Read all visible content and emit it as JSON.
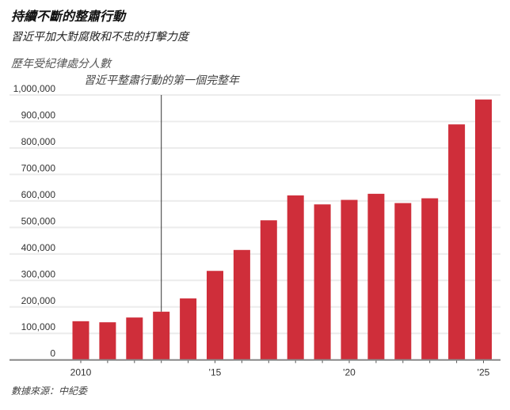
{
  "title": "持續不斷的整肅行動",
  "subtitle": "習近平加大對腐敗和不忠的打擊力度",
  "source": "數據來源：中紀委",
  "chart_data": {
    "type": "bar",
    "title": "持續不斷的整肅行動",
    "subtitle": "習近平加大對腐敗和不忠的打擊力度",
    "ylabel": "歷年受紀律處分人數",
    "xlabel": "",
    "categories": [
      2010,
      2011,
      2012,
      2013,
      2014,
      2015,
      2016,
      2017,
      2018,
      2019,
      2020,
      2021,
      2022,
      2023,
      2024,
      2025
    ],
    "values": [
      146000,
      142000,
      160000,
      182000,
      232000,
      336000,
      415000,
      527000,
      621000,
      587000,
      604000,
      627000,
      592000,
      610000,
      889000,
      983000
    ],
    "ylim": [
      0,
      1000000
    ],
    "yticks": [
      0,
      100000,
      200000,
      300000,
      400000,
      500000,
      600000,
      700000,
      800000,
      900000,
      1000000
    ],
    "ytick_labels": [
      "0",
      "100,000",
      "200,000",
      "300,000",
      "400,000",
      "500,000",
      "600,000",
      "700,000",
      "800,000",
      "900,000",
      "1,000,000"
    ],
    "xtick_labels": [
      {
        "year": 2010,
        "label": "2010"
      },
      {
        "year": 2015,
        "label": "'15"
      },
      {
        "year": 2020,
        "label": "'20"
      },
      {
        "year": 2025,
        "label": "'25"
      }
    ],
    "annotation": {
      "year": 2013,
      "text": "習近平整肅行動的第一個完整年"
    },
    "grid": true,
    "bar_color": "#cf2e3a"
  }
}
